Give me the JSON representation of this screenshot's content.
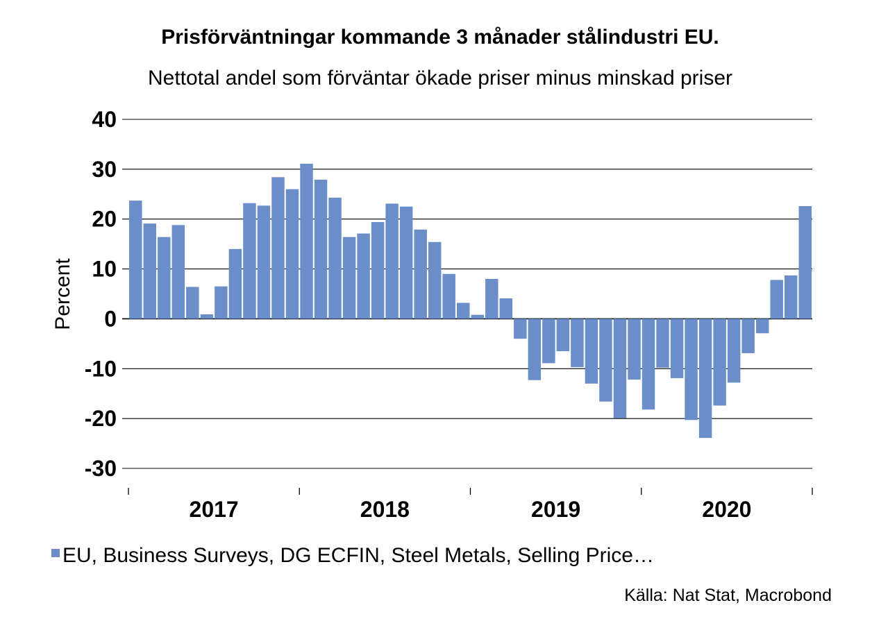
{
  "chart_data": {
    "type": "bar",
    "title": "Prisförväntningar kommande 3 månader stålindustri EU.",
    "subtitle": "Nettotal andel som förväntar ökade priser minus minskad priser",
    "ylabel": "Percent",
    "xlabel": "",
    "ylim": [
      -30,
      40
    ],
    "yticks": [
      40,
      30,
      20,
      10,
      0,
      -10,
      -20,
      -30
    ],
    "year_labels": [
      "2017",
      "2018",
      "2019",
      "2020"
    ],
    "grid": true,
    "legend_position": "bottom",
    "source": "Källa: Nat Stat, Macrobond",
    "bar_color": "#6b8ec8",
    "series": [
      {
        "name": "EU, Business Surveys, DG ECFIN, Steel Metals, Selling Price…",
        "values": [
          23.7,
          19.1,
          16.4,
          18.8,
          6.4,
          0.9,
          6.5,
          14.0,
          23.2,
          22.7,
          28.4,
          26.0,
          31.1,
          27.9,
          24.3,
          16.4,
          17.1,
          19.4,
          23.1,
          22.5,
          17.9,
          15.4,
          9.0,
          3.2,
          0.8,
          8.0,
          4.1,
          -4.0,
          -12.3,
          -8.9,
          -6.5,
          -9.7,
          -13.0,
          -16.6,
          -19.9,
          -12.2,
          -18.2,
          -9.8,
          -11.9,
          -20.3,
          -23.9,
          -17.4,
          -12.8,
          -6.9,
          -2.9,
          7.8,
          8.7,
          22.6
        ]
      }
    ]
  }
}
